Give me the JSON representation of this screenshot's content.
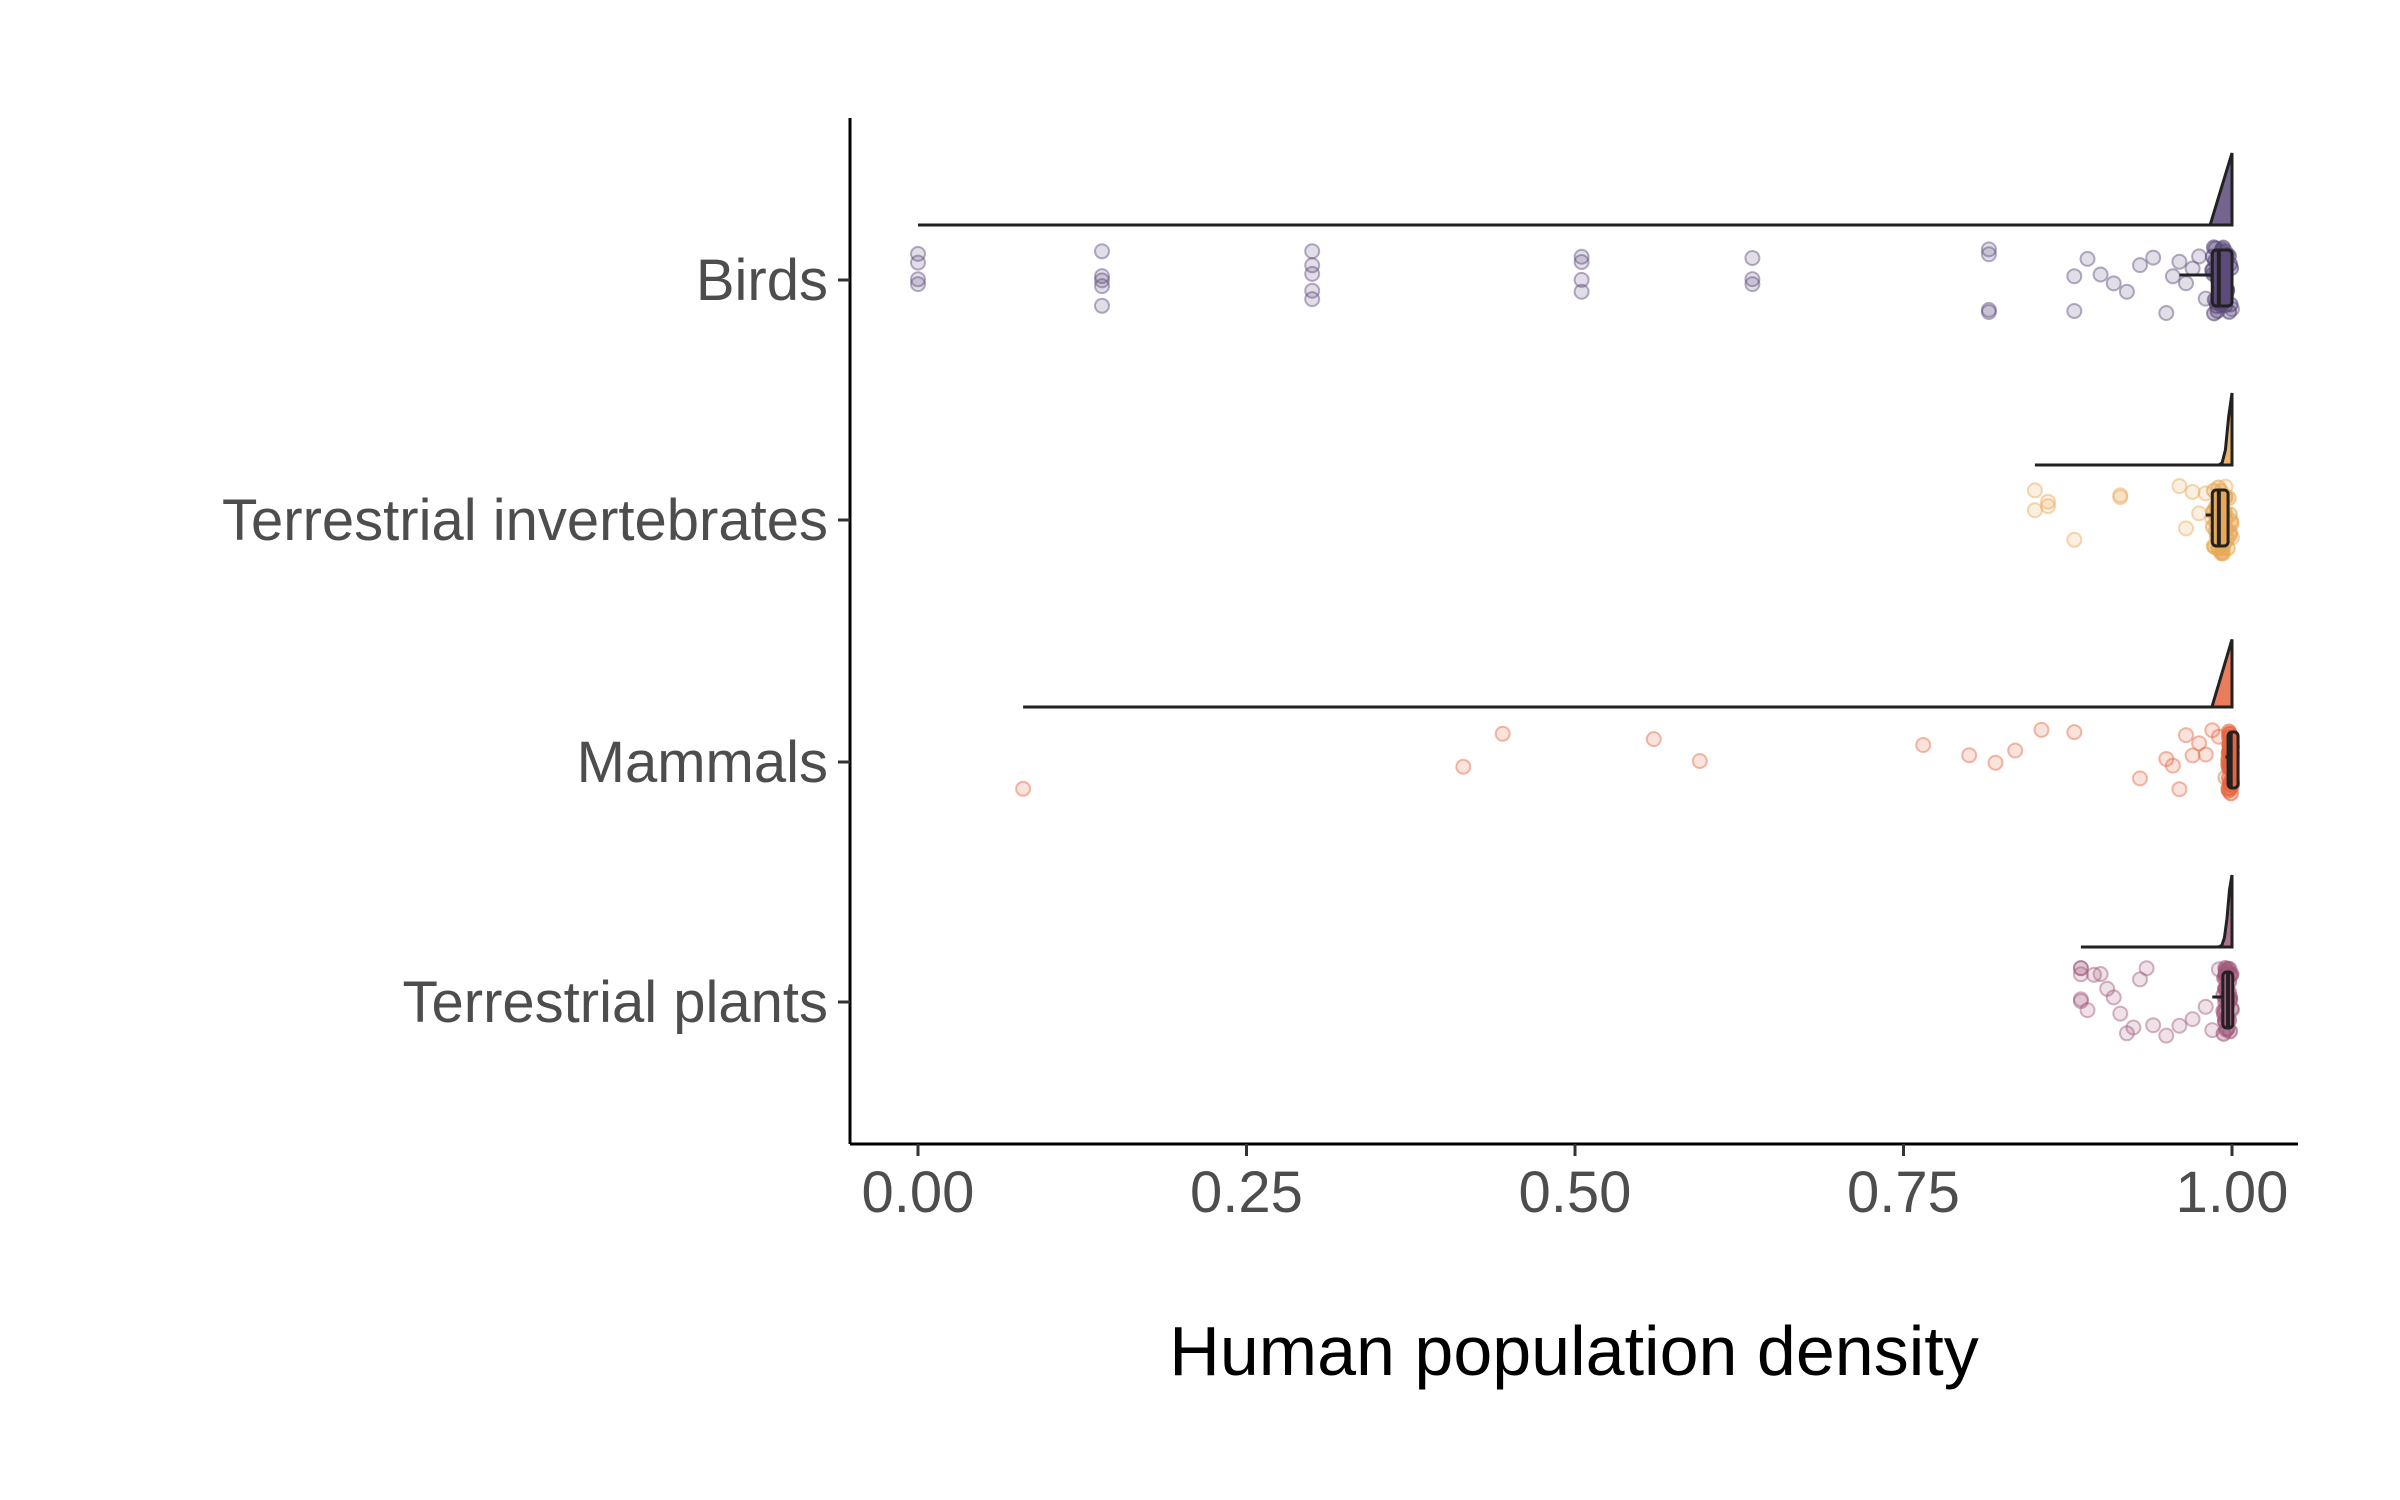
{
  "chart_data": {
    "type": "raincloud",
    "orientation": "horizontal",
    "title": "",
    "xlabel": "Human population density",
    "ylabel": "",
    "xlim": [
      0,
      1
    ],
    "x_ticks": [
      0,
      0.25,
      0.5,
      0.75,
      1
    ],
    "x_tick_labels": [
      "0.00",
      "0.25",
      "0.50",
      "0.75",
      "1.00"
    ],
    "grid": false,
    "legend": "none",
    "categories": [
      "Birds",
      "Terrestrial invertebrates",
      "Mammals",
      "Terrestrial plants"
    ],
    "series": [
      {
        "category": "Birds",
        "color": "#5b4a7a",
        "box": {
          "min": 0.96,
          "q1": 0.985,
          "median": 0.99,
          "q3": 1.0,
          "max": 1.0
        },
        "density_range": [
          0.0,
          1.0
        ],
        "density_peak": 1.0,
        "points": [
          0.0,
          0.0,
          0.0,
          0.0,
          0.14,
          0.14,
          0.14,
          0.14,
          0.14,
          0.3,
          0.3,
          0.3,
          0.3,
          0.3,
          0.505,
          0.505,
          0.505,
          0.505,
          0.635,
          0.635,
          0.635,
          0.815,
          0.815,
          0.815,
          0.815,
          0.88,
          0.88,
          0.89,
          0.9,
          0.91,
          0.92,
          0.93,
          0.94,
          0.95,
          0.955,
          0.96,
          0.965,
          0.97,
          0.975,
          0.98,
          0.985,
          0.99,
          0.995,
          1.0
        ]
      },
      {
        "category": "Terrestrial invertebrates",
        "color": "#e8a857",
        "box": {
          "min": 0.98,
          "q1": 0.985,
          "median": 0.99,
          "q3": 0.997,
          "max": 1.0
        },
        "density_range": [
          0.85,
          1.0
        ],
        "density_peak": 1.0,
        "points": [
          0.85,
          0.85,
          0.86,
          0.86,
          0.88,
          0.915,
          0.915,
          0.96,
          0.965,
          0.97,
          0.975,
          0.98,
          0.985,
          0.99,
          0.995,
          1.0
        ]
      },
      {
        "category": "Mammals",
        "color": "#e5663e",
        "box": {
          "min": 0.995,
          "q1": 0.997,
          "median": 0.999,
          "q3": 1.0,
          "max": 1.0
        },
        "density_range": [
          0.08,
          1.0
        ],
        "density_peak": 0.999,
        "points": [
          0.08,
          0.415,
          0.445,
          0.56,
          0.595,
          0.765,
          0.8,
          0.82,
          0.835,
          0.855,
          0.88,
          0.93,
          0.95,
          0.955,
          0.96,
          0.965,
          0.97,
          0.975,
          0.98,
          0.985,
          0.99,
          0.995,
          1.0
        ]
      },
      {
        "category": "Terrestrial plants",
        "color": "#a0597a",
        "box": {
          "min": 0.985,
          "q1": 0.993,
          "median": 0.997,
          "q3": 1.0,
          "max": 1.0
        },
        "density_range": [
          0.885,
          1.0
        ],
        "density_peak": 1.0,
        "points": [
          0.885,
          0.885,
          0.885,
          0.885,
          0.885,
          0.89,
          0.895,
          0.9,
          0.905,
          0.91,
          0.915,
          0.92,
          0.925,
          0.93,
          0.935,
          0.94,
          0.95,
          0.96,
          0.97,
          0.98,
          0.985,
          0.99,
          0.995,
          1.0
        ]
      }
    ]
  }
}
